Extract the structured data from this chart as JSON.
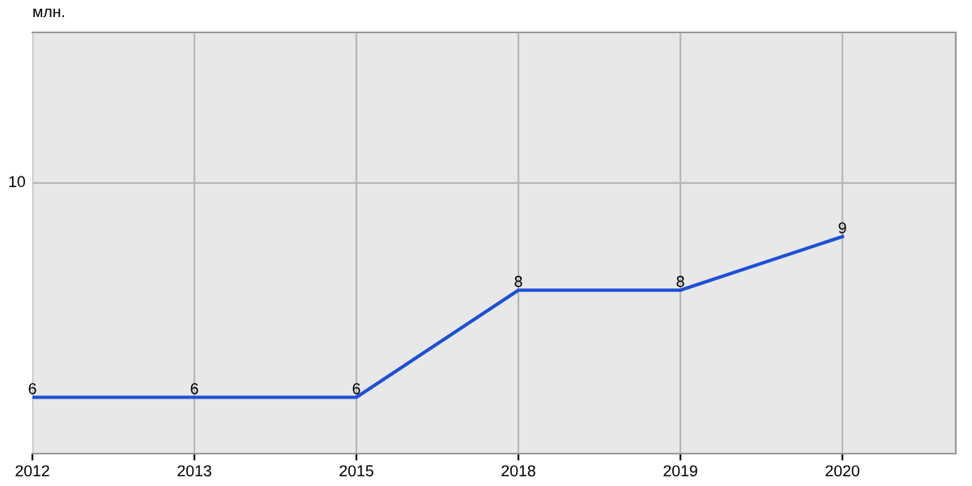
{
  "chart_data": {
    "type": "line",
    "categories": [
      "2012",
      "2013",
      "2015",
      "2018",
      "2019",
      "2020"
    ],
    "series": [
      {
        "color": "#1f4fd6",
        "values": [
          6,
          6,
          6,
          8,
          8,
          9
        ]
      }
    ],
    "annotations": [
      "млн."
    ],
    "ref_lines": [
      {
        "axis": "y",
        "value": 10,
        "label": "10",
        "color": "#b8b8b8"
      }
    ],
    "data_labels": true,
    "grid": true,
    "marker": "none",
    "line_style": "solid"
  }
}
